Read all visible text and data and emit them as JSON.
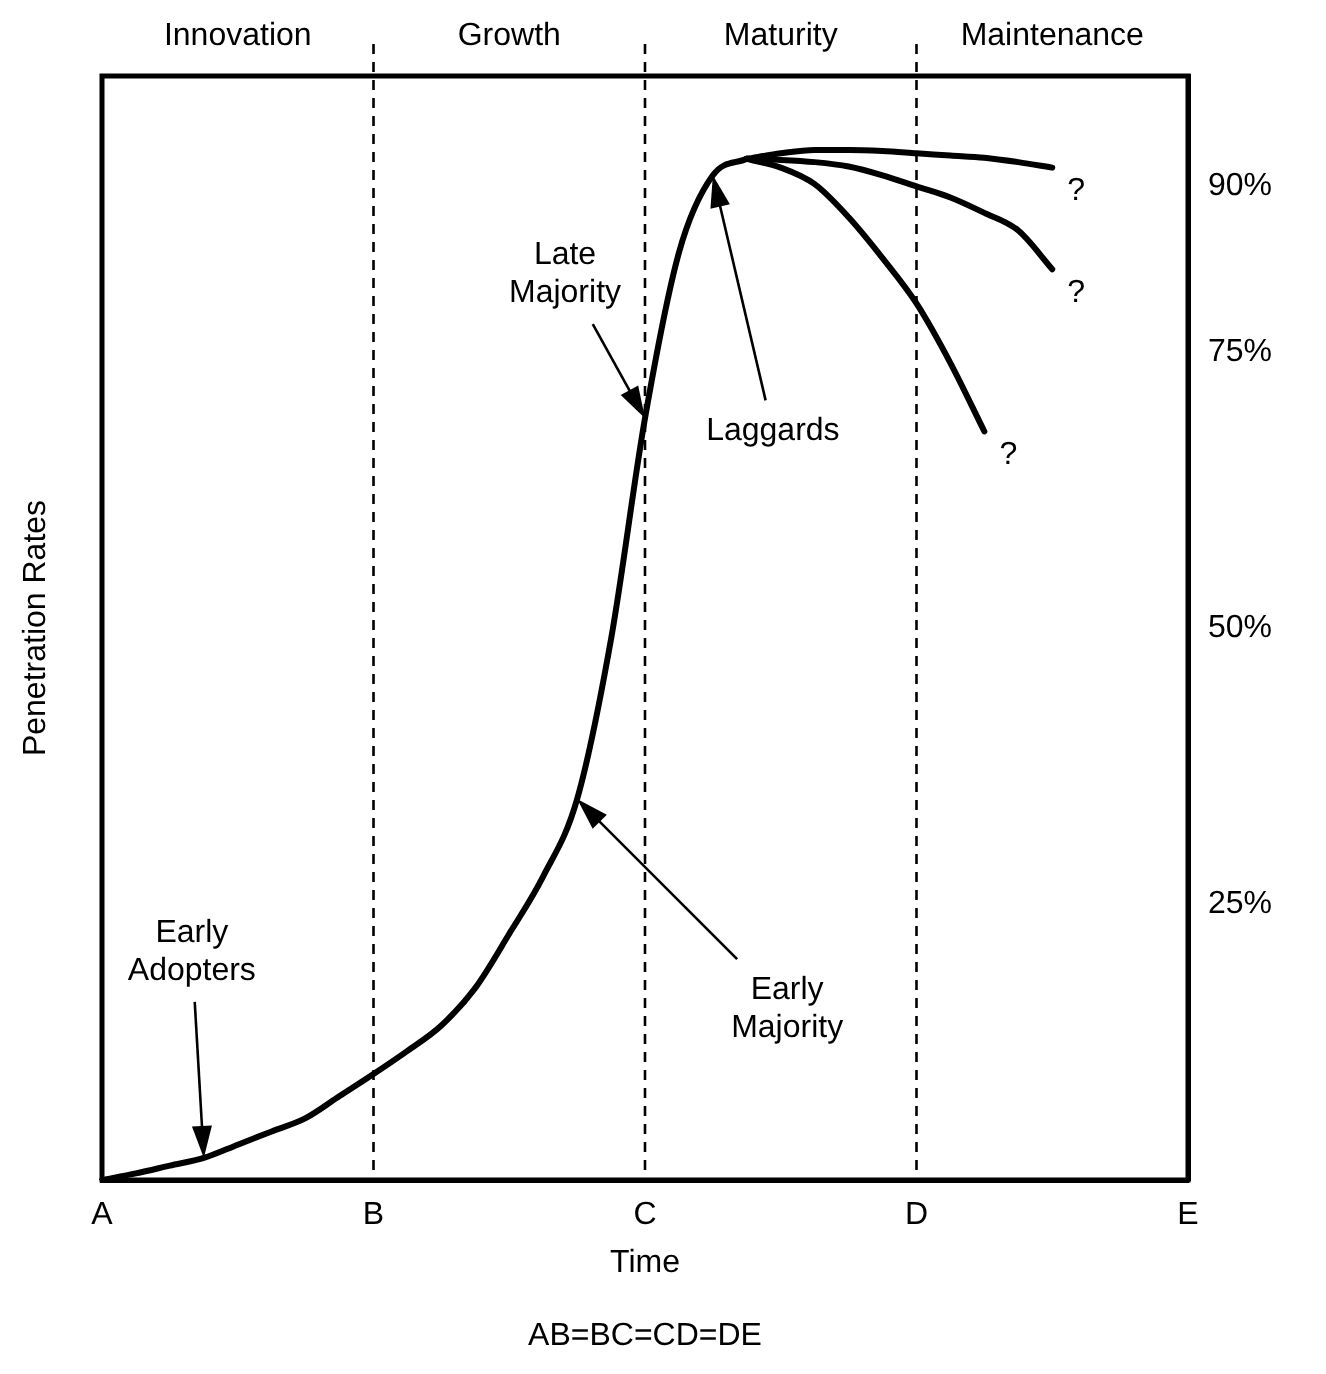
{
  "chart_data": {
    "type": "line",
    "xlabel": "Time",
    "ylabel": "Penetration Rates",
    "categories": [
      "A",
      null,
      null,
      null,
      null,
      null,
      null,
      null,
      "B",
      null,
      null,
      null,
      null,
      null,
      null,
      null,
      "C",
      null,
      null,
      null,
      null,
      null,
      null,
      null,
      "D",
      null,
      null,
      null,
      null,
      null,
      null,
      null,
      "E"
    ],
    "ylim": [
      0,
      100
    ],
    "yticks": [
      {
        "value": 25,
        "label": "25%"
      },
      {
        "value": 50,
        "label": "50%"
      },
      {
        "value": 75,
        "label": "75%"
      },
      {
        "value": 90,
        "label": "90%"
      }
    ],
    "series": [
      {
        "color": "#000000",
        "values": [
          0,
          0.6,
          1.3,
          2.0,
          3.2,
          4.4,
          5.6,
          7.6,
          9.6,
          11.7,
          14.0,
          17.4,
          22.3,
          27.5,
          34.5,
          49,
          69,
          84,
          91,
          92.5,
          null,
          null,
          null,
          null,
          null,
          null,
          null,
          null,
          null,
          null,
          null,
          null,
          null
        ]
      },
      {
        "color": "#000000",
        "values": [
          null,
          null,
          null,
          null,
          null,
          null,
          null,
          null,
          null,
          null,
          null,
          null,
          null,
          null,
          null,
          null,
          null,
          null,
          null,
          92.5,
          93,
          93.3,
          93.3,
          93.2,
          93,
          92.8,
          92.6,
          92.2,
          91.7,
          null,
          null,
          null,
          null
        ]
      },
      {
        "color": "#000000",
        "values": [
          null,
          null,
          null,
          null,
          null,
          null,
          null,
          null,
          null,
          null,
          null,
          null,
          null,
          null,
          null,
          null,
          null,
          null,
          null,
          92.5,
          92.4,
          92.2,
          91.8,
          91,
          90,
          89,
          87.6,
          86,
          82.5,
          null,
          null,
          null,
          null
        ]
      },
      {
        "color": "#000000",
        "values": [
          null,
          null,
          null,
          null,
          null,
          null,
          null,
          null,
          null,
          null,
          null,
          null,
          null,
          null,
          null,
          null,
          null,
          null,
          null,
          92.5,
          91.7,
          90.2,
          87.2,
          83.5,
          79.4,
          74,
          67.8,
          null,
          null,
          null,
          null,
          null,
          null
        ]
      }
    ],
    "ref_lines": [
      {
        "axis": "x",
        "value": "B",
        "line_style": "dashed",
        "color": "#000000"
      },
      {
        "axis": "x",
        "value": "C",
        "line_style": "dashed",
        "color": "#000000"
      },
      {
        "axis": "x",
        "value": "D",
        "line_style": "dashed",
        "color": "#000000"
      }
    ],
    "annotations": [
      "Innovation",
      "Growth",
      "Maturity",
      "Maintenance",
      "Early Adopters",
      "Early Majority",
      "Late Majority",
      "Laggards",
      "?",
      "?",
      "?",
      "AB=BC=CD=DE"
    ],
    "marker": "none",
    "line_style": "solid",
    "grid": false,
    "legend": false
  }
}
